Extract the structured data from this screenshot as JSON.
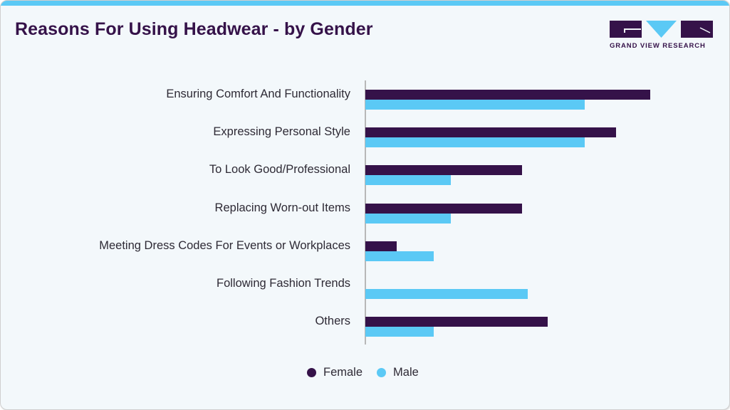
{
  "header": {
    "title": "Reasons For Using Headwear - by Gender",
    "logo_text": "GRAND VIEW RESEARCH"
  },
  "colors": {
    "female": "#351249",
    "male": "#5bc9f5",
    "background": "#f3f8fb",
    "accent_bar": "#5bc9f5"
  },
  "legend": {
    "items": [
      {
        "label": "Female",
        "color": "#351249"
      },
      {
        "label": "Male",
        "color": "#5bc9f5"
      }
    ]
  },
  "chart_data": {
    "type": "bar",
    "orientation": "horizontal",
    "title": "Reasons For Using Headwear - by Gender",
    "xlabel": "",
    "ylabel": "",
    "grid": false,
    "legend_position": "bottom",
    "categories": [
      "Ensuring Comfort And Functionality",
      "Expressing Personal Style",
      "To Look Good/Professional",
      "Replacing Worn-out Items",
      "Meeting Dress Codes For Events or Workplaces",
      "Following Fashion Trends",
      "Others"
    ],
    "series": [
      {
        "name": "Female",
        "values": [
          100,
          88,
          55,
          55,
          11,
          0,
          64
        ]
      },
      {
        "name": "Male",
        "values": [
          77,
          77,
          30,
          30,
          24,
          57,
          24
        ]
      }
    ],
    "xlim": [
      0,
      100
    ],
    "note": "Values are relative (no axis ticks shown); estimated from bar lengths"
  }
}
